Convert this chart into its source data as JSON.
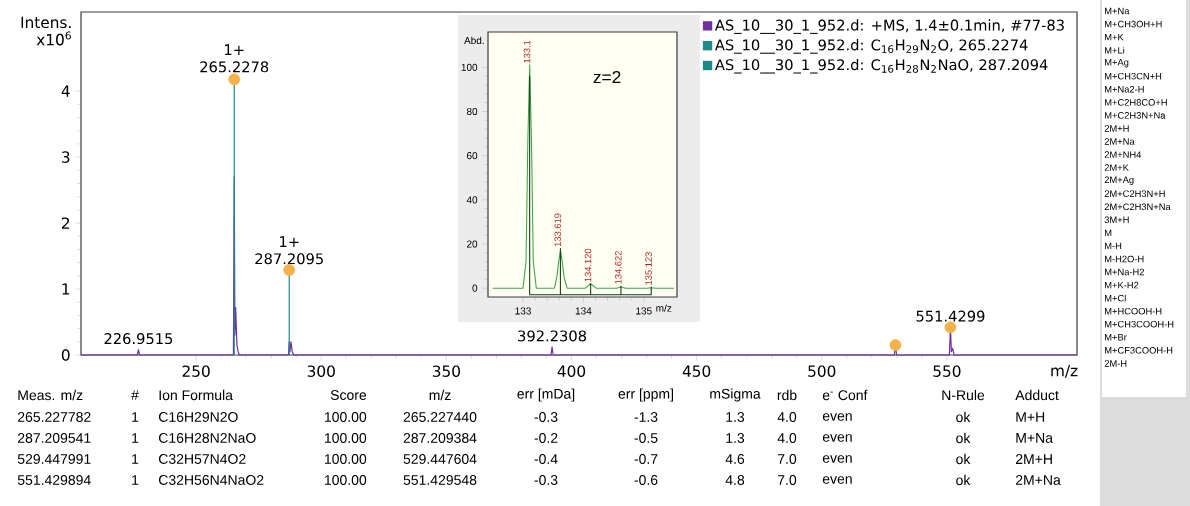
{
  "chart_data": [
    {
      "type": "line",
      "xlim": [
        204,
        602
      ],
      "ylim": [
        0,
        5.2
      ],
      "xticks": [
        250,
        300,
        350,
        400,
        450,
        500,
        550
      ],
      "yticks": [
        0,
        1,
        2,
        3,
        4
      ],
      "xlabel": "m/z",
      "ylabel": "Intens. x10$^{6}$",
      "legend": "top right",
      "series": [
        {
          "name": "AS_10__30_1_952.d: +MS, 1.4±0.1min, #77-83",
          "color": "#7030a0",
          "x": [
            204,
            226.5,
            226.95,
            227.4,
            264.9,
            265.23,
            265.5,
            265.8,
            266.3,
            266.8,
            267.3,
            286.9,
            287.21,
            287.5,
            287.9,
            288.4,
            289,
            391.8,
            392.23,
            392.7,
            529.0,
            529.45,
            529.9,
            551.0,
            551.43,
            551.8,
            552.3,
            552.9,
            602
          ],
          "values": [
            0,
            0,
            0.08,
            0,
            0,
            2.7,
            0.3,
            0.72,
            0.15,
            0.05,
            0,
            0,
            0.2,
            0.05,
            0.2,
            0.05,
            0,
            0,
            0.12,
            0,
            0,
            0.15,
            0,
            0,
            0.42,
            0.05,
            0.1,
            0,
            0
          ]
        },
        {
          "name": "AS_10__30_1_952.d: C$_{16}$H$_{29}$N$_{2}$O, 265.2274",
          "color": "#1f8a8a",
          "x": [
            265.2274,
            265.2274
          ],
          "values": [
            0,
            4.2
          ]
        },
        {
          "name": "AS_10__30_1_952.d: C$_{16}$H$_{28}$N$_{2}$NaO, 287.2094",
          "color": "#1f8a8a",
          "x": [
            287.2094,
            287.2094
          ],
          "values": [
            0,
            1.22
          ]
        },
        {
          "type": "scatter",
          "color": "#f6b24a",
          "x": [
            265.2278,
            287.2095,
            529.448,
            551.4299
          ],
          "values": [
            4.18,
            1.29,
            0.15,
            0.42
          ]
        }
      ],
      "annotations": [
        {
          "text": "265.2278",
          "x": 265.2278,
          "y": 4.2
        },
        {
          "text": "1+",
          "x": 265.2278,
          "y": 4.2
        },
        {
          "text": "287.2095",
          "x": 287.2095,
          "y": 1.29
        },
        {
          "text": "1+",
          "x": 287.2095,
          "y": 1.29
        },
        {
          "text": "226.9515",
          "x": 226.9515,
          "y": 0.08
        },
        {
          "text": "392.2308",
          "x": 392.2308,
          "y": 0.12
        },
        {
          "text": "551.4299",
          "x": 551.4299,
          "y": 0.42
        }
      ]
    },
    {
      "type": "line",
      "xlim": [
        132.42,
        135.55
      ],
      "ylim": [
        -4,
        116
      ],
      "xticks": [
        133,
        134,
        135
      ],
      "yticks": [
        0,
        20,
        40,
        60,
        80,
        100
      ],
      "xlabel": "m/z",
      "ylabel": "Abd.",
      "series": [
        {
          "color": "#3fa34d",
          "x": [
            132.5,
            133.0,
            133.05,
            133.08,
            133.11,
            133.14,
            133.17,
            133.22,
            133.52,
            133.56,
            133.59,
            133.62,
            133.65,
            133.68,
            133.73,
            134.03,
            134.12,
            134.21,
            134.55,
            134.62,
            134.7,
            135.05,
            135.12,
            135.2,
            135.5
          ],
          "values": [
            0,
            0,
            12,
            67,
            101,
            67,
            12,
            0,
            0,
            5,
            12,
            17,
            12,
            5,
            0,
            0,
            2,
            0,
            0,
            0.5,
            0,
            0,
            0.2,
            0,
            0
          ]
        },
        {
          "color": "#103a14",
          "x": [
            133.11,
            133.11,
            133.11,
            133.619,
            133.619,
            133.619,
            134.12,
            134.12,
            134.12,
            134.622,
            134.622,
            134.622,
            135.123,
            135.123,
            135.123
          ],
          "values": [
            -3,
            96,
            -3,
            -3,
            18,
            -3,
            -3,
            2,
            -3,
            -3,
            1,
            -3,
            -3,
            0.5,
            -3
          ]
        }
      ],
      "annotations": [
        {
          "text": "133.1",
          "x": 133.11,
          "y": 101
        },
        {
          "text": "133.619",
          "x": 133.619,
          "y": 18
        },
        {
          "text": "134.120",
          "x": 134.12,
          "y": 2
        },
        {
          "text": "134.622",
          "x": 134.622,
          "y": 1
        },
        {
          "text": "135.123",
          "x": 135.123,
          "y": 0.5
        },
        "z=2"
      ]
    },
    {
      "type": "other",
      "categories": [
        "Meas. m/z",
        "#",
        "Ion Formula",
        "Score",
        "m/z",
        "err [mDa]",
        "err [ppm]",
        "mSigma",
        "rdb",
        "e$^{-}$ Conf",
        "N-Rule",
        "Adduct"
      ],
      "annotations": [
        "265.227782",
        "1",
        "C16H29N2O",
        "100.00",
        "265.227440",
        "-0.3",
        "-1.3",
        "1.3",
        "4.0",
        "even",
        "ok",
        "M+H",
        "287.209541",
        "1",
        "C16H28N2NaO",
        "100.00",
        "287.209384",
        "-0.2",
        "-0.5",
        "1.3",
        "4.0",
        "even",
        "ok",
        "M+Na",
        "529.447991",
        "1",
        "C32H57N4O2",
        "100.00",
        "529.447604",
        "-0.4",
        "-0.7",
        "4.6",
        "7.0",
        "even",
        "ok",
        "2M+H",
        "551.429894",
        "1",
        "C32H56N4NaO2",
        "100.00",
        "551.429548",
        "-0.3",
        "-0.6",
        "4.8",
        "7.0",
        "even",
        "ok",
        "2M+Na"
      ]
    },
    {
      "type": "other",
      "annotations": [
        "M+Na",
        "M+CH3OH+H",
        "M+K",
        "M+Li",
        "M+Ag",
        "M+CH3CN+H",
        "M+Na2-H",
        "M+C2H8CO+H",
        "M+C2H3N+Na",
        "2M+H",
        "2M+Na",
        "2M+NH4",
        "2M+K",
        "2M+Ag",
        "2M+C2H3N+H",
        "2M+C2H3N+Na",
        "3M+H",
        "M",
        "M-H",
        "M-H2O-H",
        "M+Na-H2",
        "M+K-H2",
        "M+Cl",
        "M+HCOOH-H",
        "M+CH3COOH-H",
        "M+Br",
        "M+CF3COOH-H",
        "2M-H"
      ]
    }
  ]
}
